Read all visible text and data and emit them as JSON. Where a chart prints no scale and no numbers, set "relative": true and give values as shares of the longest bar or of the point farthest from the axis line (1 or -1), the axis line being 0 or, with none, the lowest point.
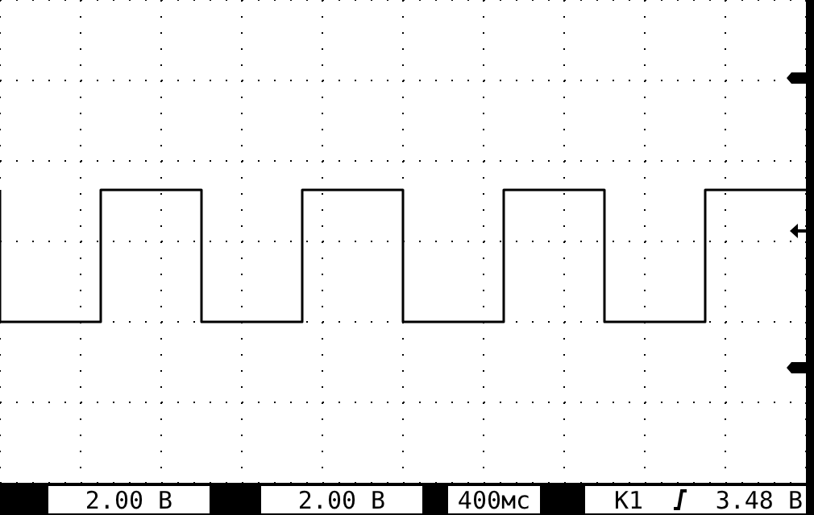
{
  "chart_data": {
    "type": "step",
    "relative": true,
    "tick_labels": false,
    "grid": true,
    "legend": false,
    "marker": "none",
    "categories": [
      null,
      null,
      null,
      null,
      null,
      null,
      null,
      null,
      null,
      null,
      null,
      null,
      null,
      null,
      null,
      null,
      null,
      null,
      null,
      null,
      null,
      null,
      null,
      null,
      null,
      null,
      null,
      null,
      null,
      null,
      null,
      null,
      null,
      null,
      null,
      null,
      null,
      null,
      null,
      null,
      null
    ],
    "series": [
      {
        "color": "#000000",
        "values": [
          1,
          0,
          0,
          0,
          0,
          0,
          1,
          1,
          1,
          1,
          1,
          0,
          0,
          0,
          0,
          0,
          1,
          1,
          1,
          1,
          1,
          0,
          0,
          0,
          0,
          0,
          1,
          1,
          1,
          1,
          1,
          0,
          0,
          0,
          0,
          0,
          1,
          1,
          1,
          1,
          1
        ]
      }
    ],
    "annotations": [
      "2.00 В",
      "2.00 В",
      "400мс",
      "К1",
      "3.48 В"
    ]
  }
}
